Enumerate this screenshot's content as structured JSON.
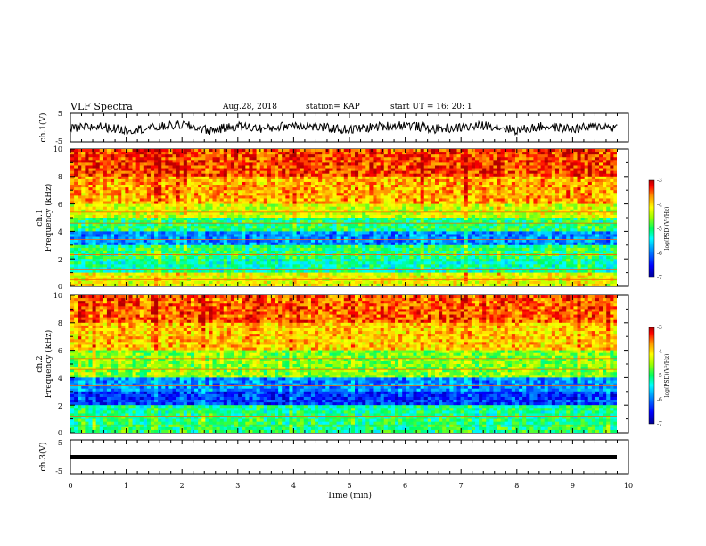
{
  "header": {
    "title": "VLF Spectra",
    "date": "Aug.28, 2018",
    "station": "station= KAP",
    "start": "start  UT =   16: 20: 1"
  },
  "panel1": {
    "ylabel": "ch.1(V)",
    "ticks": [
      "5",
      "-5"
    ]
  },
  "panel2": {
    "ylabel_top": "ch.1",
    "ylabel_bottom": "Frequency (kHz)",
    "ticks": [
      "10",
      "8",
      "6",
      "4",
      "2",
      "0"
    ]
  },
  "panel3": {
    "ylabel_top": "ch.2",
    "ylabel_bottom": "Frequency (kHz)",
    "ticks": [
      "10",
      "8",
      "6",
      "4",
      "2",
      "0"
    ]
  },
  "panel4": {
    "ylabel": "ch.3(V)",
    "ticks": [
      "5",
      "-5"
    ]
  },
  "colorbar": {
    "label": "log(PSD)(V²/Hz)",
    "ticks": [
      "-3",
      "-4",
      "-5",
      "-6",
      "-7"
    ],
    "colors": [
      "#000090",
      "#0000ff",
      "#0080ff",
      "#00ffff",
      "#00ff80",
      "#80ff00",
      "#ffff00",
      "#ffa000",
      "#ff0000",
      "#c00000"
    ]
  },
  "xaxis": {
    "label": "Time (min)",
    "ticks": [
      "0",
      "1",
      "2",
      "3",
      "4",
      "5",
      "6",
      "7",
      "8",
      "9",
      "10"
    ]
  },
  "chart_data": [
    {
      "type": "line",
      "title": "ch.1(V)",
      "xlabel": "",
      "ylabel": "ch.1(V)",
      "xlim": [
        0,
        10
      ],
      "ylim": [
        -5,
        5
      ],
      "x": [
        0,
        0.5,
        1,
        1.5,
        2,
        2.5,
        3,
        3.5,
        4,
        4.5,
        5,
        5.5,
        6,
        6.5,
        7,
        7.5,
        8,
        8.5,
        9,
        9.5,
        9.8
      ],
      "values": [
        -0.5,
        0.5,
        -1,
        0,
        1,
        -1,
        0.5,
        -0.5,
        1,
        0,
        -0.8,
        0.3,
        1,
        -0.5,
        0,
        0.8,
        -1,
        0.5,
        -0.5,
        0.5,
        0
      ]
    },
    {
      "type": "heatmap",
      "title": "ch.1",
      "xlabel": "",
      "ylabel": "Frequency (kHz)",
      "xlim": [
        0,
        10
      ],
      "ylim": [
        0,
        10
      ],
      "color_scale": "log(PSD)(V²/Hz)",
      "zlim": [
        -7,
        -3
      ],
      "freq_bands": [
        {
          "range": [
            8,
            10
          ],
          "level": -3.4
        },
        {
          "range": [
            6,
            8
          ],
          "level": -3.8
        },
        {
          "range": [
            5,
            6
          ],
          "level": -4.3
        },
        {
          "range": [
            4,
            5
          ],
          "level": -5.0
        },
        {
          "range": [
            3,
            4
          ],
          "level": -5.9
        },
        {
          "range": [
            2,
            3
          ],
          "level": -5.0
        },
        {
          "range": [
            1,
            2
          ],
          "level": -5.2
        },
        {
          "range": [
            0,
            1
          ],
          "level": -4.2
        }
      ]
    },
    {
      "type": "heatmap",
      "title": "ch.2",
      "xlabel": "",
      "ylabel": "Frequency (kHz)",
      "xlim": [
        0,
        10
      ],
      "ylim": [
        0,
        10
      ],
      "color_scale": "log(PSD)(V²/Hz)",
      "zlim": [
        -7,
        -3
      ],
      "freq_bands": [
        {
          "range": [
            8,
            10
          ],
          "level": -3.5
        },
        {
          "range": [
            6,
            8
          ],
          "level": -3.9
        },
        {
          "range": [
            4,
            6
          ],
          "level": -4.6
        },
        {
          "range": [
            3,
            4
          ],
          "level": -5.9
        },
        {
          "range": [
            2,
            3
          ],
          "level": -6.3
        },
        {
          "range": [
            1,
            2
          ],
          "level": -5.1
        },
        {
          "range": [
            0,
            1
          ],
          "level": -5.0
        }
      ]
    },
    {
      "type": "line",
      "title": "ch.3(V)",
      "xlabel": "Time (min)",
      "ylabel": "ch.3(V)",
      "xlim": [
        0,
        10
      ],
      "ylim": [
        -5,
        5
      ],
      "x": [
        0,
        9.8
      ],
      "values": [
        0,
        0
      ]
    }
  ]
}
